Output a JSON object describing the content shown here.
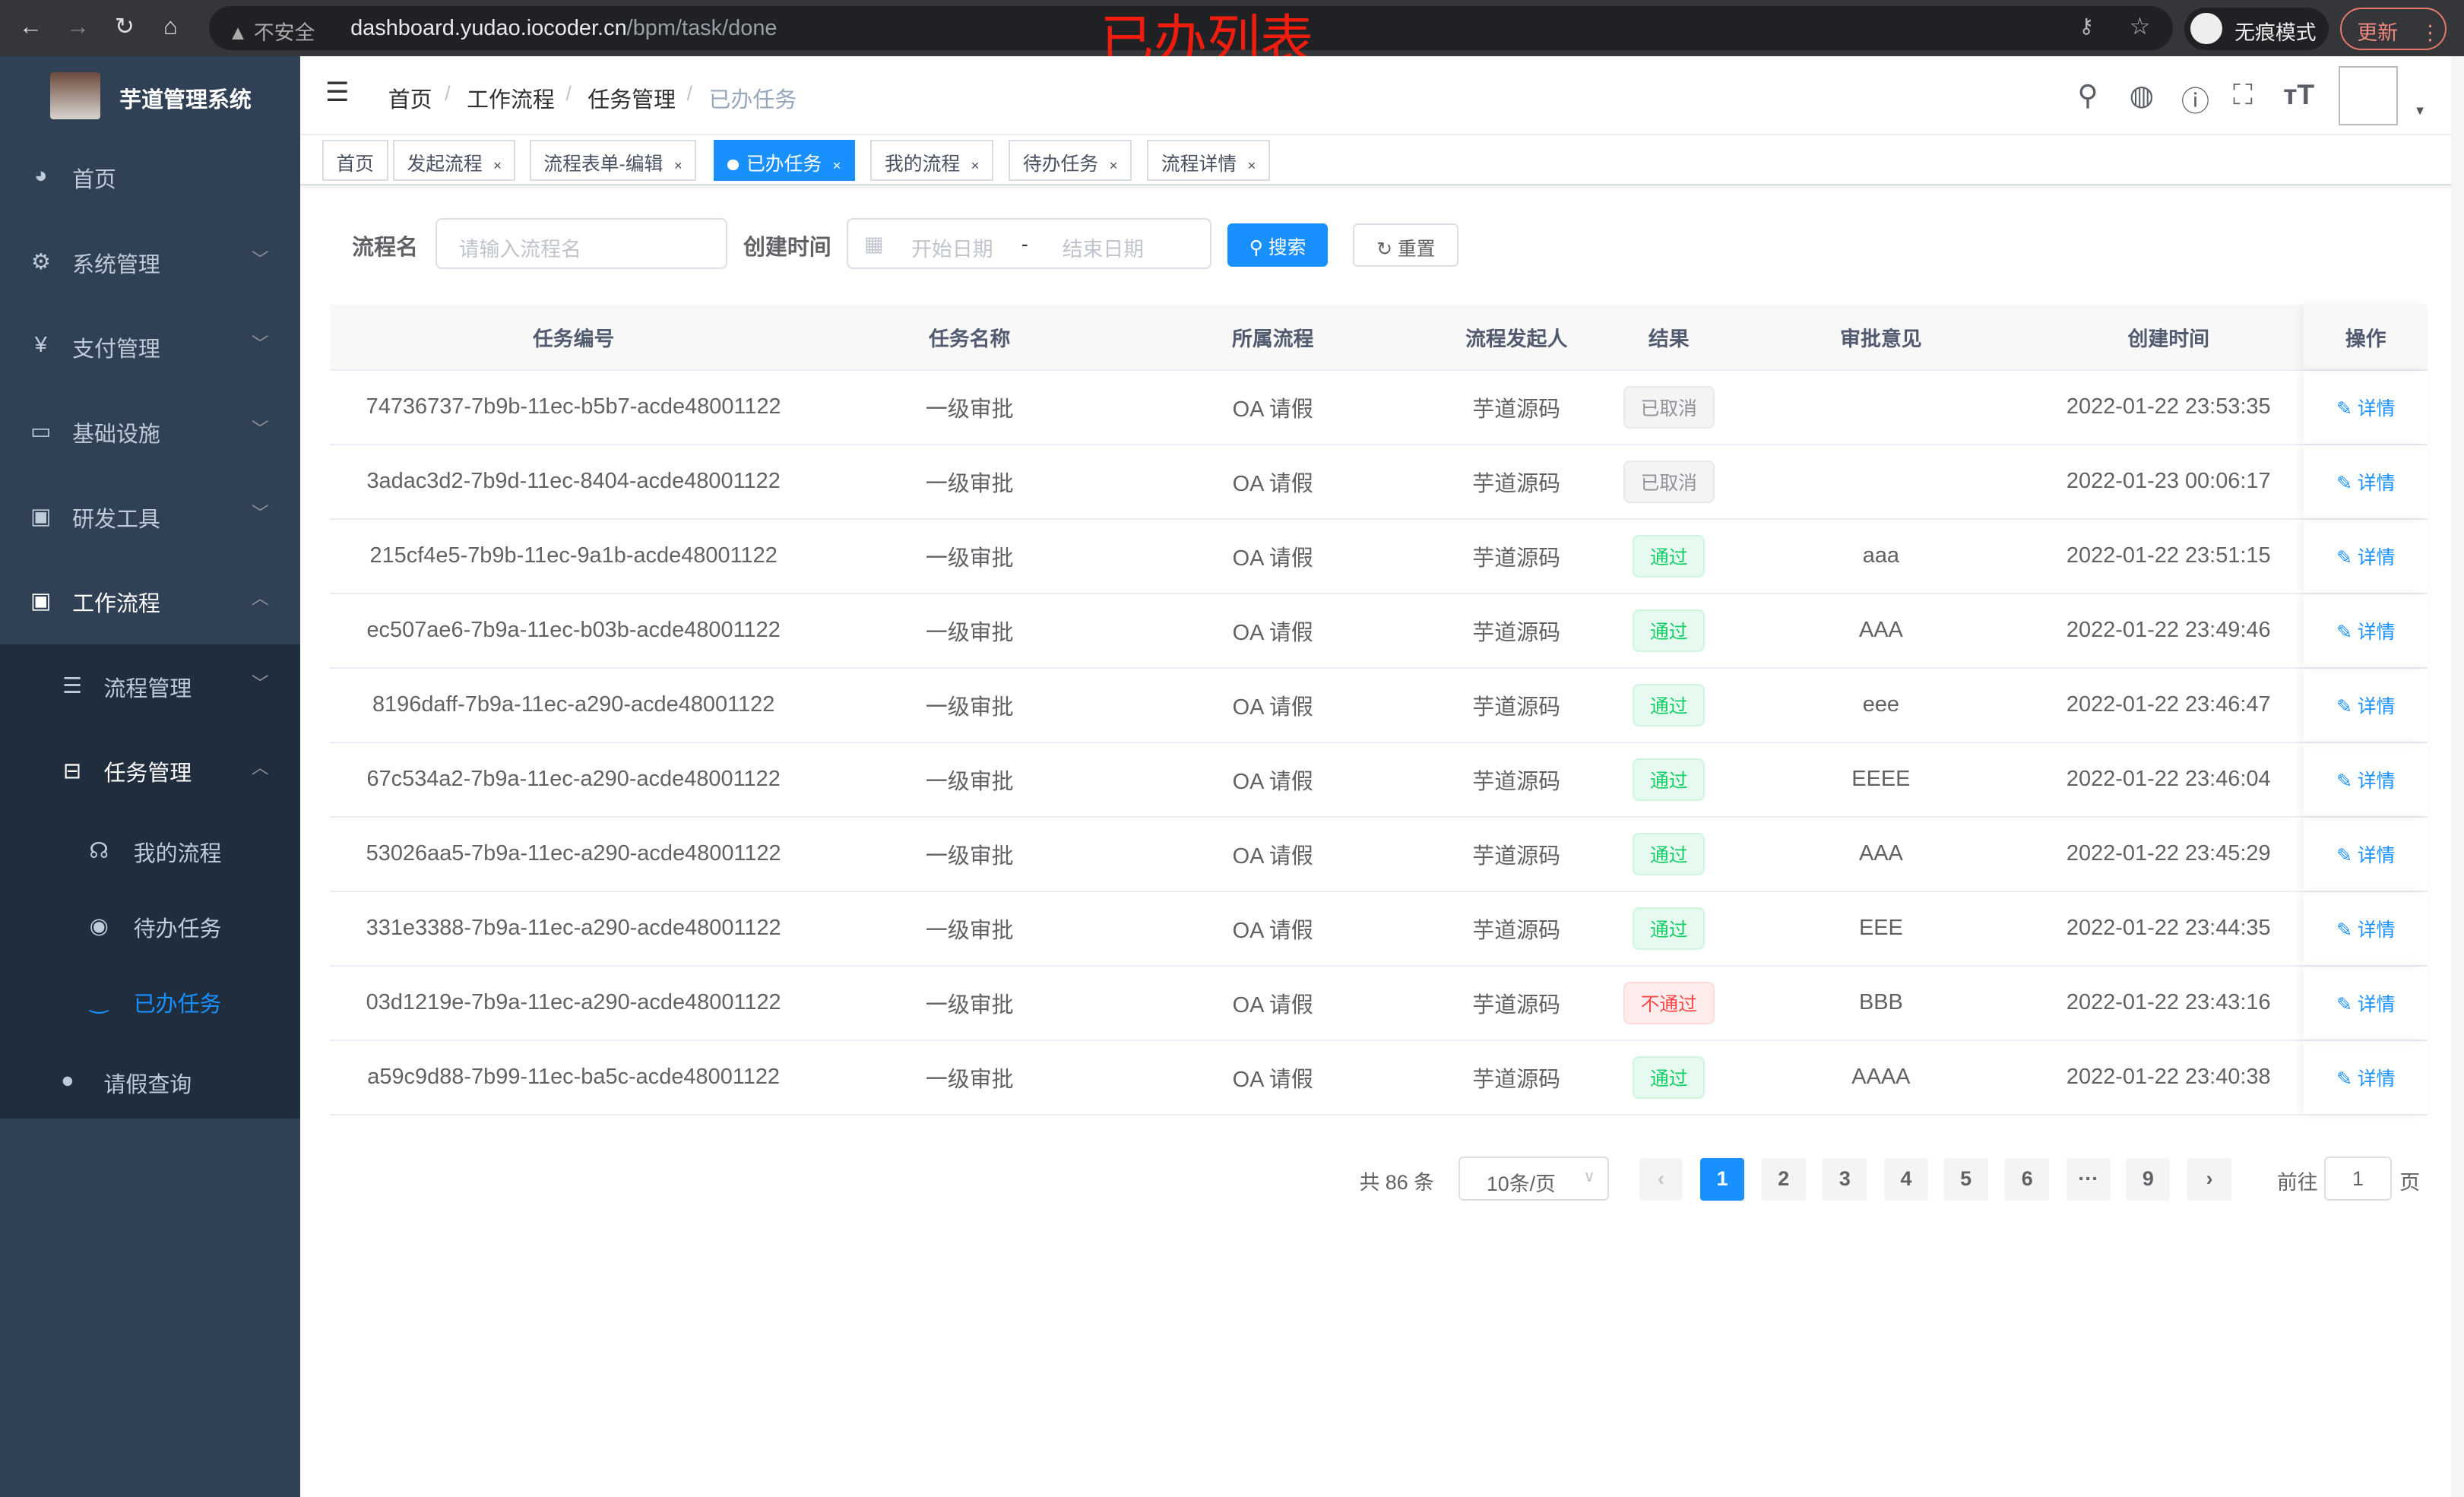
{
  "browser": {
    "insecure": "不安全",
    "url_host": "dashboard.yudao.iocoder.cn",
    "url_path": "/bpm/task/done",
    "incognito": "无痕模式",
    "update": "更新"
  },
  "overlay_title": "已办列表",
  "sidebar": {
    "brand": "芋道管理系统",
    "items": [
      {
        "label": "首页",
        "icon": "dashboard-icon"
      },
      {
        "label": "系统管理",
        "icon": "gear-icon"
      },
      {
        "label": "支付管理",
        "icon": "yen-icon"
      },
      {
        "label": "基础设施",
        "icon": "monitor-icon"
      },
      {
        "label": "研发工具",
        "icon": "toolbox-icon"
      },
      {
        "label": "工作流程",
        "icon": "toolbox-icon"
      }
    ],
    "sub": [
      {
        "label": "流程管理"
      },
      {
        "label": "任务管理"
      }
    ],
    "subsub": [
      {
        "label": "我的流程"
      },
      {
        "label": "待办任务"
      },
      {
        "label": "已办任务"
      }
    ],
    "leave": "请假查询"
  },
  "breadcrumb": [
    "首页",
    "工作流程",
    "任务管理",
    "已办任务"
  ],
  "tags": [
    "首页",
    "发起流程",
    "流程表单-编辑",
    "已办任务",
    "我的流程",
    "待办任务",
    "流程详情"
  ],
  "search": {
    "name_label": "流程名",
    "name_placeholder": "请输入流程名",
    "time_label": "创建时间",
    "start_placeholder": "开始日期",
    "sep": "-",
    "end_placeholder": "结束日期",
    "search": "搜索",
    "reset": "重置"
  },
  "table": {
    "headers": [
      "任务编号",
      "任务名称",
      "所属流程",
      "流程发起人",
      "结果",
      "审批意见",
      "创建时间",
      "操作"
    ],
    "rows": [
      [
        "74736737-7b9b-11ec-b5b7-acde48001122",
        "一级审批",
        "OA 请假",
        "芋道源码",
        "已取消",
        "",
        "2022-01-22 23:53:35",
        "详情"
      ],
      [
        "3adac3d2-7b9d-11ec-8404-acde48001122",
        "一级审批",
        "OA 请假",
        "芋道源码",
        "已取消",
        "",
        "2022-01-23 00:06:17",
        "详情"
      ],
      [
        "215cf4e5-7b9b-11ec-9a1b-acde48001122",
        "一级审批",
        "OA 请假",
        "芋道源码",
        "通过",
        "aaa",
        "2022-01-22 23:51:15",
        "详情"
      ],
      [
        "ec507ae6-7b9a-11ec-b03b-acde48001122",
        "一级审批",
        "OA 请假",
        "芋道源码",
        "通过",
        "AAA",
        "2022-01-22 23:49:46",
        "详情"
      ],
      [
        "8196daff-7b9a-11ec-a290-acde48001122",
        "一级审批",
        "OA 请假",
        "芋道源码",
        "通过",
        "eee",
        "2022-01-22 23:46:47",
        "详情"
      ],
      [
        "67c534a2-7b9a-11ec-a290-acde48001122",
        "一级审批",
        "OA 请假",
        "芋道源码",
        "通过",
        "EEEE",
        "2022-01-22 23:46:04",
        "详情"
      ],
      [
        "53026aa5-7b9a-11ec-a290-acde48001122",
        "一级审批",
        "OA 请假",
        "芋道源码",
        "通过",
        "AAA",
        "2022-01-22 23:45:29",
        "详情"
      ],
      [
        "331e3388-7b9a-11ec-a290-acde48001122",
        "一级审批",
        "OA 请假",
        "芋道源码",
        "通过",
        "EEE",
        "2022-01-22 23:44:35",
        "详情"
      ],
      [
        "03d1219e-7b9a-11ec-a290-acde48001122",
        "一级审批",
        "OA 请假",
        "芋道源码",
        "不通过",
        "BBB",
        "2022-01-22 23:43:16",
        "详情"
      ],
      [
        "a59c9d88-7b99-11ec-ba5c-acde48001122",
        "一级审批",
        "OA 请假",
        "芋道源码",
        "通过",
        "AAAA",
        "2022-01-22 23:40:38",
        "详情"
      ]
    ]
  },
  "badge_colors": {
    "已取消": [
      "#909399",
      "#f4f4f5",
      "#e9e9eb"
    ],
    "通过": [
      "#13ce66",
      "#e7faf0",
      "#d0f5e0"
    ],
    "不通过": [
      "#ff4949",
      "#ffeded",
      "#ffdbdb"
    ]
  },
  "pagination": {
    "total": "共 86 条",
    "page_size": "10条/页",
    "pages": [
      "1",
      "2",
      "3",
      "4",
      "5",
      "6",
      "···",
      "9"
    ],
    "current": "1",
    "goto": "前往",
    "goto_value": "1",
    "page_unit": "页"
  },
  "accent": "#1890ff"
}
